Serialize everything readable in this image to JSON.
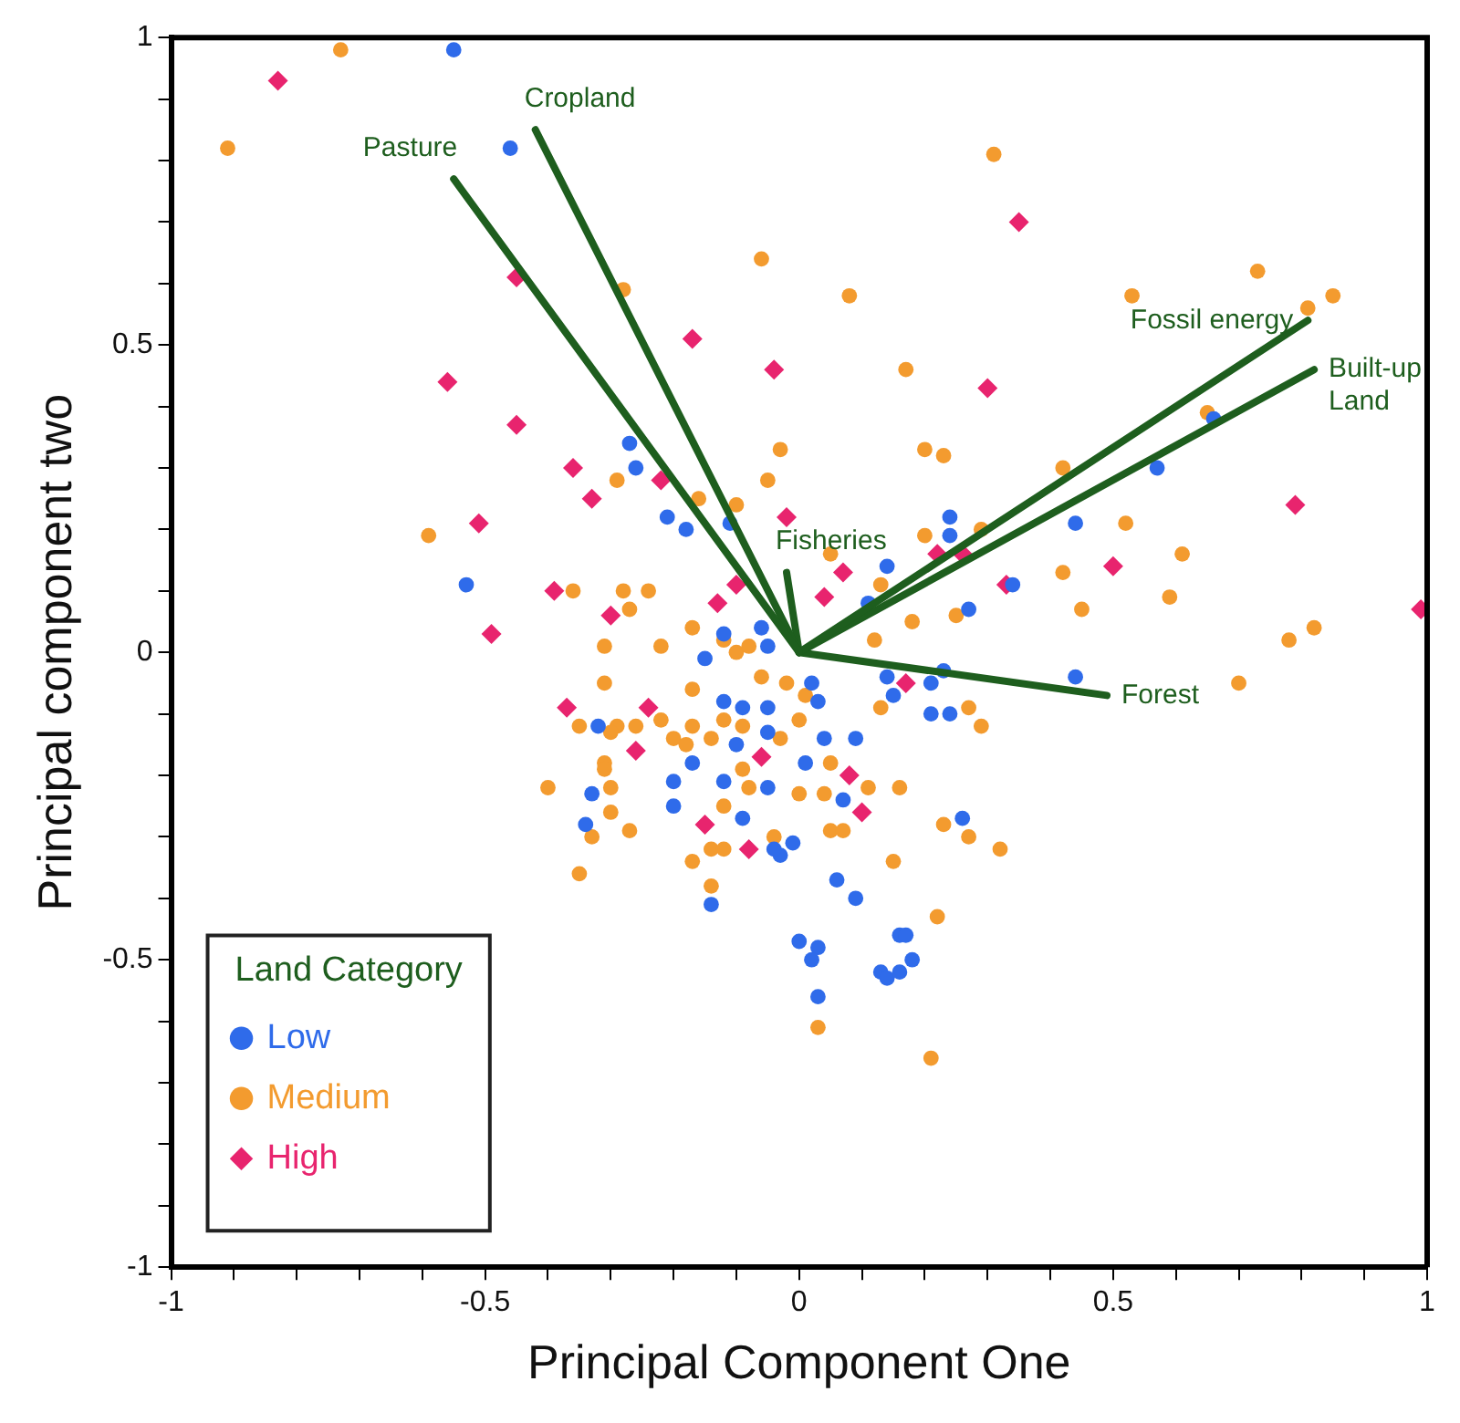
{
  "chart_data": {
    "type": "scatter",
    "xlabel": "Principal Component One",
    "ylabel": "Principal component two",
    "legend_title": "Land Category",
    "legend": "bottom left",
    "grid": false,
    "xlim": [
      -1,
      1
    ],
    "ylim": [
      -1,
      1
    ],
    "xticks": [
      -1,
      {
        "value": -0.9,
        "label": null
      },
      {
        "value": -0.8,
        "label": null
      },
      {
        "value": -0.7,
        "label": null
      },
      {
        "value": -0.6,
        "label": null
      },
      -0.5,
      {
        "value": -0.4,
        "label": null
      },
      {
        "value": -0.3,
        "label": null
      },
      {
        "value": -0.2,
        "label": null
      },
      {
        "value": -0.1,
        "label": null
      },
      0,
      {
        "value": 0.1,
        "label": null
      },
      {
        "value": 0.2,
        "label": null
      },
      {
        "value": 0.3,
        "label": null
      },
      {
        "value": 0.4,
        "label": null
      },
      0.5,
      {
        "value": 0.6,
        "label": null
      },
      {
        "value": 0.7,
        "label": null
      },
      {
        "value": 0.8,
        "label": null
      },
      {
        "value": 0.9,
        "label": null
      },
      1
    ],
    "yticks": [
      -1,
      {
        "value": -0.9,
        "label": null
      },
      {
        "value": -0.8,
        "label": null
      },
      {
        "value": -0.7,
        "label": null
      },
      {
        "value": -0.6,
        "label": null
      },
      -0.5,
      {
        "value": -0.4,
        "label": null
      },
      {
        "value": -0.3,
        "label": null
      },
      {
        "value": -0.2,
        "label": null
      },
      {
        "value": -0.1,
        "label": null
      },
      0,
      {
        "value": 0.1,
        "label": null
      },
      {
        "value": 0.2,
        "label": null
      },
      {
        "value": 0.3,
        "label": null
      },
      {
        "value": 0.4,
        "label": null
      },
      0.5,
      {
        "value": 0.6,
        "label": null
      },
      {
        "value": 0.7,
        "label": null
      },
      {
        "value": 0.8,
        "label": null
      },
      {
        "value": 0.9,
        "label": null
      },
      1
    ],
    "series": [
      {
        "name": "Low",
        "type": "scatter",
        "marker": "circle",
        "color": "#2f6bea",
        "x": [
          -0.55,
          -0.46,
          -0.27,
          0.66,
          -0.26,
          -0.21,
          -0.18,
          -0.11,
          -0.53,
          -0.06,
          -0.05,
          -0.15,
          -0.12,
          -0.32,
          -0.12,
          -0.09,
          -0.05,
          -0.05,
          -0.1,
          -0.17,
          -0.2,
          -0.12,
          -0.05,
          -0.33,
          -0.2,
          -0.09,
          -0.34,
          -0.03,
          -0.01,
          -0.04,
          -0.14,
          0.57,
          0.24,
          0.24,
          0.44,
          0.14,
          0.11,
          0.34,
          0.27,
          0.44,
          0.14,
          0.21,
          0.23,
          0.15,
          0.21,
          0.24,
          0.02,
          0.03,
          0.04,
          0.09,
          0.01,
          0.07,
          0.26,
          0.06,
          0.09,
          0.0,
          0.03,
          0.02,
          0.03,
          0.16,
          0.17,
          0.18,
          0.13,
          0.14,
          0.16
        ],
        "values": [
          0.98,
          0.82,
          0.34,
          0.38,
          0.3,
          0.22,
          0.2,
          0.21,
          0.11,
          0.04,
          0.01,
          -0.01,
          0.03,
          -0.12,
          -0.08,
          -0.09,
          -0.09,
          -0.13,
          -0.15,
          -0.18,
          -0.21,
          -0.21,
          -0.22,
          -0.23,
          -0.25,
          -0.27,
          -0.28,
          -0.33,
          -0.31,
          -0.32,
          -0.41,
          0.3,
          0.22,
          0.19,
          0.21,
          0.14,
          0.08,
          0.11,
          0.07,
          -0.04,
          -0.04,
          -0.05,
          -0.03,
          -0.07,
          -0.1,
          -0.1,
          -0.05,
          -0.08,
          -0.14,
          -0.14,
          -0.18,
          -0.24,
          -0.27,
          -0.37,
          -0.4,
          -0.47,
          -0.48,
          -0.5,
          -0.56,
          -0.46,
          -0.46,
          -0.5,
          -0.52,
          -0.53,
          -0.52
        ]
      },
      {
        "name": "Medium",
        "type": "scatter",
        "marker": "circle",
        "color": "#f39b2f",
        "x": [
          -0.73,
          -0.91,
          -0.06,
          -0.28,
          -0.03,
          0.31,
          0.08,
          0.53,
          0.73,
          0.81,
          0.85,
          0.17,
          0.65,
          0.2,
          0.23,
          0.42,
          -0.29,
          -0.16,
          -0.1,
          -0.05,
          -0.59,
          -0.36,
          -0.28,
          -0.24,
          -0.27,
          -0.31,
          -0.22,
          -0.17,
          -0.12,
          -0.1,
          -0.08,
          -0.31,
          -0.17,
          -0.06,
          -0.02,
          -0.35,
          -0.29,
          -0.3,
          -0.26,
          -0.22,
          -0.17,
          -0.2,
          -0.18,
          -0.14,
          -0.12,
          -0.09,
          -0.03,
          -0.31,
          -0.31,
          -0.3,
          -0.09,
          -0.08,
          -0.4,
          -0.3,
          -0.12,
          -0.33,
          -0.27,
          -0.14,
          -0.12,
          -0.04,
          -0.17,
          -0.35,
          -0.14,
          0.52,
          0.61,
          0.2,
          0.29,
          0.05,
          0.13,
          0.42,
          0.59,
          0.45,
          0.25,
          0.18,
          0.12,
          0.78,
          0.82,
          0.7,
          0.01,
          0.13,
          0.27,
          0.29,
          0.0,
          0.05,
          0.11,
          0.16,
          0.04,
          0.05,
          0.07,
          0.23,
          0.27,
          0.32,
          0.15,
          0.0,
          0.03,
          0.22,
          0.21
        ],
        "values": [
          0.98,
          0.82,
          0.64,
          0.59,
          0.33,
          0.81,
          0.58,
          0.58,
          0.62,
          0.56,
          0.58,
          0.46,
          0.39,
          0.33,
          0.32,
          0.3,
          0.28,
          0.25,
          0.24,
          0.28,
          0.19,
          0.1,
          0.1,
          0.1,
          0.07,
          0.01,
          0.01,
          0.04,
          0.02,
          0.0,
          0.01,
          -0.05,
          -0.06,
          -0.04,
          -0.05,
          -0.12,
          -0.12,
          -0.13,
          -0.12,
          -0.11,
          -0.12,
          -0.14,
          -0.15,
          -0.14,
          -0.11,
          -0.12,
          -0.14,
          -0.18,
          -0.19,
          -0.22,
          -0.19,
          -0.22,
          -0.22,
          -0.26,
          -0.25,
          -0.3,
          -0.29,
          -0.32,
          -0.32,
          -0.3,
          -0.34,
          -0.36,
          -0.38,
          0.21,
          0.16,
          0.19,
          0.2,
          0.16,
          0.11,
          0.13,
          0.09,
          0.07,
          0.06,
          0.05,
          0.02,
          0.02,
          0.04,
          -0.05,
          -0.07,
          -0.09,
          -0.09,
          -0.12,
          -0.11,
          -0.18,
          -0.22,
          -0.22,
          -0.23,
          -0.29,
          -0.29,
          -0.28,
          -0.3,
          -0.32,
          -0.34,
          -0.23,
          -0.61,
          -0.43,
          -0.66
        ]
      },
      {
        "name": "High",
        "type": "scatter",
        "marker": "diamond",
        "color": "#e8246e",
        "x": [
          -0.83,
          -0.45,
          -0.17,
          -0.04,
          -0.56,
          -0.45,
          0.35,
          0.3,
          -0.36,
          -0.22,
          -0.33,
          -0.02,
          -0.51,
          -0.49,
          -0.39,
          -0.3,
          -0.13,
          -0.1,
          -0.37,
          -0.24,
          -0.26,
          -0.06,
          -0.15,
          -0.08,
          0.79,
          0.22,
          0.26,
          0.07,
          0.04,
          0.33,
          0.5,
          0.17,
          0.08,
          0.1,
          0.99
        ],
        "values": [
          0.93,
          0.61,
          0.51,
          0.46,
          0.44,
          0.37,
          0.7,
          0.43,
          0.3,
          0.28,
          0.25,
          0.22,
          0.21,
          0.03,
          0.1,
          0.06,
          0.08,
          0.11,
          -0.09,
          -0.09,
          -0.16,
          -0.17,
          -0.28,
          -0.32,
          0.24,
          0.16,
          0.16,
          0.13,
          0.09,
          0.11,
          0.14,
          -0.05,
          -0.2,
          -0.26,
          0.07
        ]
      },
      {
        "name": "Pasture",
        "type": "line",
        "marker": "none",
        "color": "#1e5e1e",
        "x": [
          0,
          -0.55
        ],
        "values": [
          0,
          0.77
        ]
      },
      {
        "name": "Cropland",
        "type": "line",
        "marker": "none",
        "color": "#1e5e1e",
        "x": [
          0,
          -0.42
        ],
        "values": [
          0,
          0.85
        ]
      },
      {
        "name": "Fossil energy",
        "type": "line",
        "marker": "none",
        "color": "#1e5e1e",
        "x": [
          0,
          0.81
        ],
        "values": [
          0,
          0.54
        ]
      },
      {
        "name": "Built-up Land",
        "type": "line",
        "marker": "none",
        "color": "#1e5e1e",
        "x": [
          0,
          0.82
        ],
        "values": [
          0,
          0.46
        ]
      },
      {
        "name": "Fisheries",
        "type": "line",
        "marker": "none",
        "color": "#1e5e1e",
        "x": [
          0,
          -0.02
        ],
        "values": [
          0,
          0.13
        ]
      },
      {
        "name": "Forest",
        "type": "line",
        "marker": "none",
        "color": "#1e5e1e",
        "x": [
          0,
          0.49
        ],
        "values": [
          0,
          -0.07
        ]
      }
    ]
  }
}
